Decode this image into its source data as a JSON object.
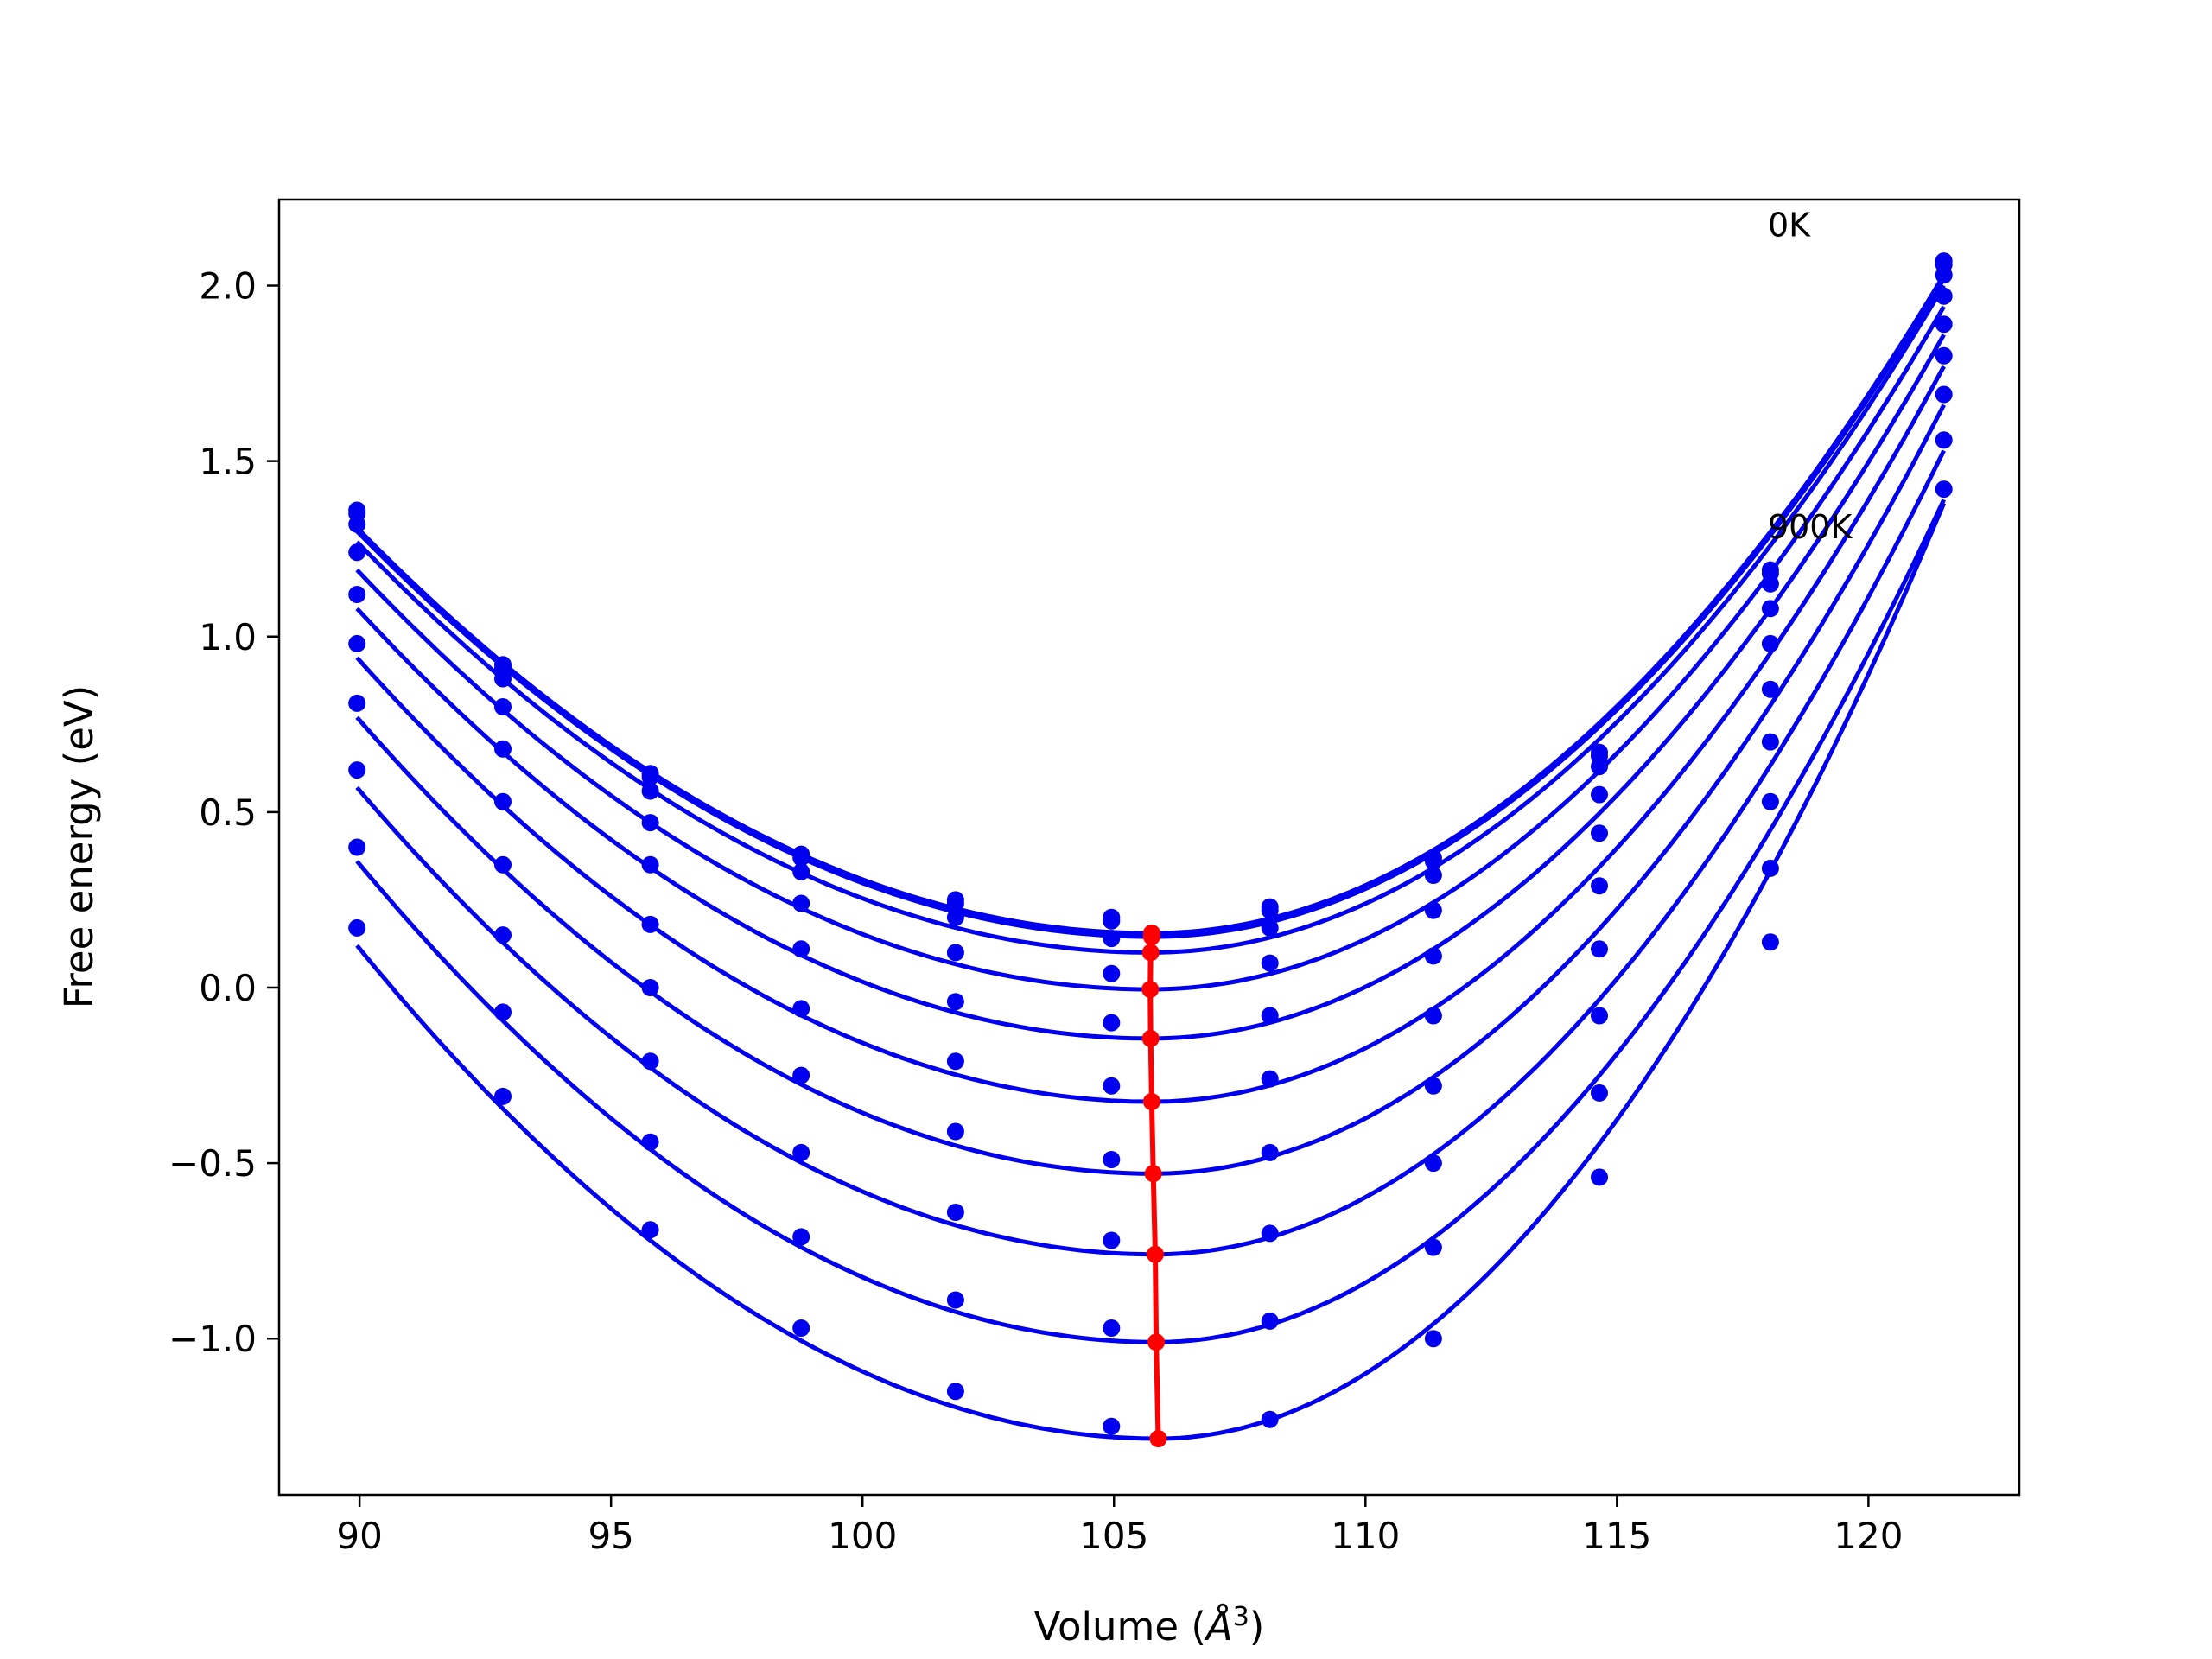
{
  "chart_data": {
    "type": "line",
    "xlabel_text": "Volume (",
    "xlabel_symbol": "Å",
    "xlabel_exponent": "3",
    "xlabel_close": ")",
    "ylabel": "Free energy (eV)",
    "xlim": [
      88.4,
      123.0
    ],
    "ylim": [
      -1.445,
      2.245
    ],
    "x_ticks": [
      90,
      95,
      100,
      105,
      110,
      115,
      120
    ],
    "x_tick_labels": [
      "90",
      "95",
      "100",
      "105",
      "110",
      "115",
      "120"
    ],
    "y_ticks": [
      -1.0,
      -0.5,
      0.0,
      0.5,
      1.0,
      1.5,
      2.0
    ],
    "y_tick_labels": [
      "−1.0",
      "−0.5",
      "0.0",
      "0.5",
      "1.0",
      "1.5",
      "2.0"
    ],
    "grid": false,
    "annotations": [
      {
        "text": "0K",
        "x": 118.0,
        "y": 2.14
      },
      {
        "text": "900K",
        "x": 118.0,
        "y": 1.28
      }
    ],
    "colors": {
      "curves": "#0000ee",
      "minima": "#ff0000"
    },
    "x": [
      89.95,
      92.85,
      95.78,
      98.78,
      101.85,
      104.95,
      108.1,
      111.35,
      114.65,
      118.05,
      121.5
    ],
    "series": [
      {
        "values": [
          1.36,
          0.92,
          0.61,
          0.38,
          0.25,
          0.2,
          0.23,
          0.37,
          0.67,
          1.19,
          2.07
        ],
        "vmin": 105.75,
        "fmin": 0.155,
        "fit_start": 1.31,
        "fit_end": 2.03
      },
      {
        "values": [
          1.35,
          0.91,
          0.6,
          0.37,
          0.24,
          0.19,
          0.22,
          0.36,
          0.66,
          1.18,
          2.06
        ],
        "vmin": 105.75,
        "fmin": 0.145,
        "fit_start": 1.3,
        "fit_end": 2.02
      },
      {
        "values": [
          1.32,
          0.88,
          0.56,
          0.33,
          0.2,
          0.14,
          0.17,
          0.32,
          0.63,
          1.15,
          2.03
        ],
        "vmin": 105.73,
        "fmin": 0.1,
        "fit_start": 1.27,
        "fit_end": 2.0
      },
      {
        "values": [
          1.24,
          0.8,
          0.47,
          0.24,
          0.1,
          0.04,
          0.07,
          0.22,
          0.55,
          1.08,
          1.97
        ],
        "vmin": 105.72,
        "fmin": -0.005,
        "fit_start": 1.19,
        "fit_end": 1.94
      },
      {
        "values": [
          1.12,
          0.68,
          0.35,
          0.11,
          -0.04,
          -0.1,
          -0.08,
          0.09,
          0.44,
          0.98,
          1.89
        ],
        "vmin": 105.73,
        "fmin": -0.145,
        "fit_start": 1.08,
        "fit_end": 1.86
      },
      {
        "values": [
          0.98,
          0.53,
          0.18,
          -0.06,
          -0.21,
          -0.28,
          -0.26,
          -0.08,
          0.29,
          0.85,
          1.8
        ],
        "vmin": 105.75,
        "fmin": -0.325,
        "fit_start": 0.94,
        "fit_end": 1.77
      },
      {
        "values": [
          0.81,
          0.35,
          0.0,
          -0.25,
          -0.41,
          -0.49,
          -0.47,
          -0.28,
          0.11,
          0.7,
          1.69
        ],
        "vmin": 105.78,
        "fmin": -0.53,
        "fit_start": 0.77,
        "fit_end": 1.66
      },
      {
        "values": [
          0.62,
          0.15,
          -0.21,
          -0.47,
          -0.64,
          -0.72,
          -0.7,
          -0.5,
          -0.08,
          0.53,
          1.56
        ],
        "vmin": 105.82,
        "fmin": -0.76,
        "fit_start": 0.57,
        "fit_end": 1.53
      },
      {
        "values": [
          0.4,
          -0.07,
          -0.44,
          -0.71,
          -0.89,
          -0.97,
          -0.95,
          -0.74,
          -0.3,
          0.34,
          1.42
        ],
        "vmin": 105.84,
        "fmin": -1.01,
        "fit_start": 0.36,
        "fit_end": 1.39
      },
      {
        "values": [
          0.17,
          -0.31,
          -0.69,
          -0.97,
          -1.15,
          -1.25,
          -1.23,
          -1.0,
          -0.54,
          0.13,
          null
        ],
        "vmin": 105.88,
        "fmin": -1.285,
        "fit_start": 0.12,
        "fit_end": 1.38
      }
    ]
  }
}
